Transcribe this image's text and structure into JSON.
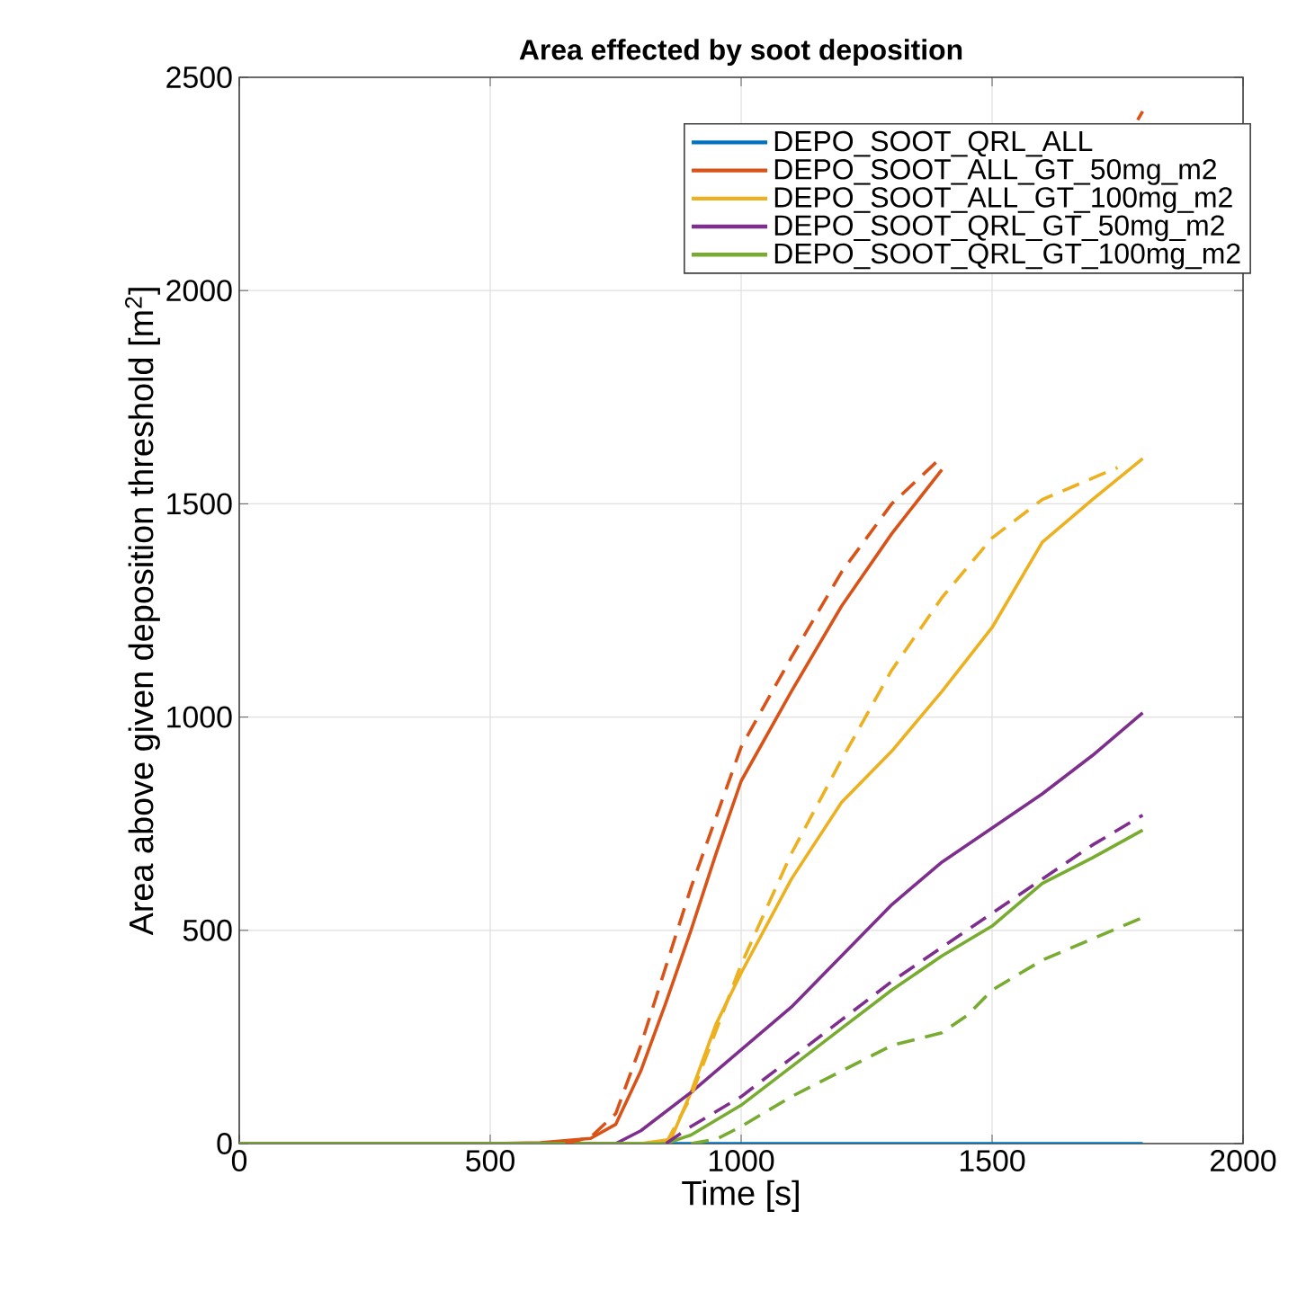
{
  "chart_data": {
    "type": "line",
    "title": "Area effected by soot deposition",
    "xlabel": "Time [s]",
    "ylabel": "Area above given deposition threshold [m$^{2}$]",
    "xlim": [
      0,
      2000
    ],
    "ylim": [
      0,
      2500
    ],
    "xticks": [
      0,
      500,
      1000,
      1500,
      2000
    ],
    "yticks": [
      0,
      500,
      1000,
      1500,
      2000,
      2500
    ],
    "grid": true,
    "legend": "top right",
    "series": [
      {
        "name": "DEPO_SOOT_QRL_ALL",
        "color": "#0072bd",
        "line_style": "solid",
        "x": [
          0,
          500,
          1000,
          1500,
          1800
        ],
        "values": [
          0,
          0,
          0,
          0,
          0
        ]
      },
      {
        "name": "DEPO_SOOT_ALL_GT_50mg_m2",
        "color": "#d95319",
        "line_style": "solid",
        "x": [
          0,
          500,
          600,
          700,
          750,
          800,
          850,
          900,
          950,
          1000,
          1100,
          1200,
          1300,
          1400,
          1450,
          1790,
          1800
        ],
        "values": [
          0,
          0,
          2,
          12,
          45,
          170,
          330,
          500,
          680,
          850,
          1060,
          1260,
          1430,
          1580,
          null,
          2400,
          2420
        ]
      },
      {
        "name": "DEPO_SOOT_ALL_GT_100mg_m2",
        "color": "#edb120",
        "line_style": "solid",
        "x": [
          0,
          500,
          800,
          860,
          900,
          950,
          1000,
          1100,
          1200,
          1300,
          1400,
          1500,
          1600,
          1700,
          1800
        ],
        "values": [
          0,
          0,
          0,
          10,
          120,
          280,
          400,
          620,
          800,
          920,
          1060,
          1210,
          1410,
          1510,
          1606
        ]
      },
      {
        "name": "DEPO_SOOT_QRL_GT_50mg_m2",
        "color": "#7e2f8e",
        "line_style": "solid",
        "x": [
          0,
          500,
          750,
          800,
          900,
          1000,
          1100,
          1200,
          1300,
          1400,
          1500,
          1600,
          1700,
          1800
        ],
        "values": [
          0,
          0,
          0,
          30,
          120,
          220,
          320,
          440,
          560,
          660,
          740,
          820,
          910,
          1010
        ]
      },
      {
        "name": "DEPO_SOOT_QRL_GT_100mg_m2",
        "color": "#77ac30",
        "line_style": "solid",
        "x": [
          0,
          500,
          850,
          900,
          1000,
          1100,
          1200,
          1300,
          1400,
          1500,
          1600,
          1700,
          1800
        ],
        "values": [
          0,
          0,
          0,
          20,
          90,
          180,
          270,
          360,
          440,
          510,
          610,
          670,
          735
        ]
      },
      {
        "color": "#d95319",
        "line_style": "dashed",
        "x": [
          650,
          700,
          750,
          800,
          900,
          1000,
          1100,
          1200,
          1300,
          1400
        ],
        "values": [
          0,
          15,
          70,
          230,
          600,
          930,
          1140,
          1340,
          1500,
          1610
        ]
      },
      {
        "color": "#edb120",
        "line_style": "dashed",
        "x": [
          850,
          900,
          1000,
          1100,
          1200,
          1300,
          1400,
          1500,
          1600,
          1700,
          1750
        ],
        "values": [
          0,
          110,
          420,
          680,
          900,
          1110,
          1280,
          1420,
          1510,
          1560,
          1585
        ]
      },
      {
        "color": "#7e2f8e",
        "line_style": "dashed",
        "x": [
          850,
          900,
          1000,
          1100,
          1200,
          1300,
          1400,
          1500,
          1600,
          1700,
          1800
        ],
        "values": [
          0,
          40,
          110,
          200,
          290,
          380,
          460,
          540,
          620,
          700,
          770
        ]
      },
      {
        "color": "#77ac30",
        "line_style": "dashed",
        "x": [
          900,
          950,
          1000,
          1100,
          1200,
          1300,
          1400,
          1450,
          1500,
          1600,
          1700,
          1800
        ],
        "values": [
          0,
          10,
          40,
          110,
          170,
          230,
          260,
          300,
          360,
          430,
          480,
          530
        ]
      }
    ]
  }
}
